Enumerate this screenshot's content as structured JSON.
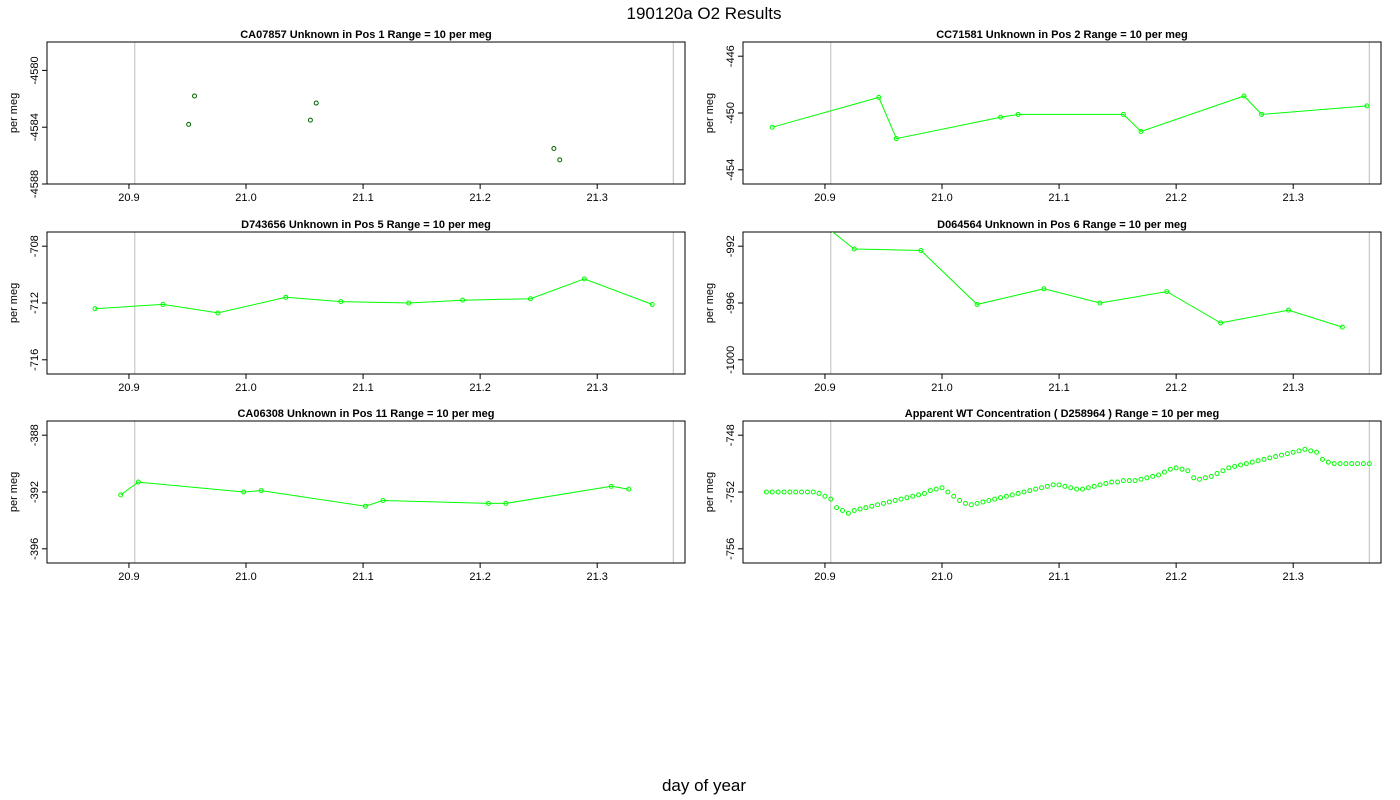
{
  "figure": {
    "title": "190120a  O2 Results",
    "xlabel": "day of year"
  },
  "chart_data": [
    {
      "type": "scatter",
      "title": "CA07857    Unknown in Pos 1         Range = 10 per meg",
      "ylabel": "per meg",
      "xlim": [
        20.83,
        21.375
      ],
      "ylim": [
        -4588.0,
        -4578.0
      ],
      "xticks": [
        20.9,
        21.0,
        21.1,
        21.2,
        21.3
      ],
      "yticks": [
        -4588,
        -4584,
        -4580
      ],
      "vlines": [
        20.905,
        21.365
      ],
      "series": [
        {
          "color": "#006400",
          "mode": "points",
          "x": [
            20.951,
            20.956,
            21.055,
            21.06,
            21.263,
            21.268
          ],
          "y": [
            -4583.8,
            -4581.8,
            -4583.5,
            -4582.3,
            -4585.5,
            -4586.3
          ]
        }
      ]
    },
    {
      "type": "line",
      "title": "CC71581    Unknown in Pos 2         Range = 10 per meg",
      "ylabel": "per meg",
      "xlim": [
        20.83,
        21.375
      ],
      "ylim": [
        -455.0,
        -445.0
      ],
      "xticks": [
        20.9,
        21.0,
        21.1,
        21.2,
        21.3
      ],
      "yticks": [
        -454,
        -450,
        -446
      ],
      "vlines": [
        20.905,
        21.365
      ],
      "series": [
        {
          "color": "#00ff00",
          "mode": "lines+points",
          "x": [
            20.855,
            20.946,
            20.961,
            21.05,
            21.065,
            21.155,
            21.17,
            21.258,
            21.273,
            21.363
          ],
          "y": [
            -451.0,
            -448.9,
            -451.8,
            -450.3,
            -450.1,
            -450.1,
            -451.3,
            -448.8,
            -450.1,
            -449.5
          ]
        }
      ]
    },
    {
      "type": "line",
      "title": "D743656    Unknown in Pos 5         Range = 10 per meg",
      "ylabel": "per meg",
      "xlim": [
        20.83,
        21.375
      ],
      "ylim": [
        -717.0,
        -707.0
      ],
      "xticks": [
        20.9,
        21.0,
        21.1,
        21.2,
        21.3
      ],
      "yticks": [
        -716,
        -712,
        -708
      ],
      "vlines": [
        20.905,
        21.365
      ],
      "series": [
        {
          "color": "#00ff00",
          "mode": "lines+points",
          "x": [
            20.871,
            20.929,
            20.976,
            21.034,
            21.081,
            21.139,
            21.185,
            21.243,
            21.289,
            21.347
          ],
          "y": [
            -712.4,
            -712.1,
            -712.7,
            -711.6,
            -711.9,
            -712.0,
            -711.8,
            -711.7,
            -710.3,
            -712.1
          ]
        }
      ]
    },
    {
      "type": "line",
      "title": "D064564    Unknown in Pos 6         Range = 10 per meg",
      "ylabel": "per meg",
      "xlim": [
        20.83,
        21.375
      ],
      "ylim": [
        -1001.0,
        -991.0
      ],
      "xticks": [
        20.9,
        21.0,
        21.1,
        21.2,
        21.3
      ],
      "yticks": [
        -1000,
        -996,
        -992
      ],
      "vlines": [
        20.905,
        21.365
      ],
      "series": [
        {
          "color": "#00ff00",
          "mode": "lines+points",
          "x": [
            20.87,
            20.925,
            20.982,
            21.03,
            21.087,
            21.135,
            21.192,
            21.238,
            21.296,
            21.342
          ],
          "y": [
            -988.6,
            -992.2,
            -992.3,
            -996.1,
            -995.0,
            -996.0,
            -995.2,
            -997.4,
            -996.5,
            -997.7
          ]
        }
      ]
    },
    {
      "type": "line",
      "title": "CA06308    Unknown in Pos 11         Range = 10 per meg",
      "ylabel": "per meg",
      "xlim": [
        20.83,
        21.375
      ],
      "ylim": [
        -397.0,
        -387.0
      ],
      "xticks": [
        20.9,
        21.0,
        21.1,
        21.2,
        21.3
      ],
      "yticks": [
        -396,
        -392,
        -388
      ],
      "vlines": [
        20.905,
        21.365
      ],
      "series": [
        {
          "color": "#00ff00",
          "mode": "lines+points",
          "x": [
            20.893,
            20.908,
            20.998,
            21.013,
            21.102,
            21.117,
            21.207,
            21.222,
            21.312,
            21.327
          ],
          "y": [
            -392.2,
            -391.3,
            -392.0,
            -391.9,
            -393.0,
            -392.6,
            -392.8,
            -392.8,
            -391.6,
            -391.8
          ]
        }
      ]
    },
    {
      "type": "scatter",
      "title": "Apparent WT Concentration ( D258964 )         Range = 10 per meg",
      "ylabel": "per meg",
      "xlim": [
        20.83,
        21.375
      ],
      "ylim": [
        -757.0,
        -747.0
      ],
      "xticks": [
        20.9,
        21.0,
        21.1,
        21.2,
        21.3
      ],
      "yticks": [
        -756,
        -752,
        -748
      ],
      "vlines": [
        20.905,
        21.365
      ],
      "series": [
        {
          "color": "#00ff00",
          "mode": "points",
          "x": [
            20.85,
            20.855,
            20.86,
            20.865,
            20.87,
            20.875,
            20.88,
            20.885,
            20.89,
            20.895,
            20.9,
            20.905,
            20.91,
            20.915,
            20.92,
            20.925,
            20.93,
            20.935,
            20.94,
            20.945,
            20.95,
            20.955,
            20.96,
            20.965,
            20.97,
            20.975,
            20.98,
            20.985,
            20.99,
            20.995,
            21.0,
            21.005,
            21.01,
            21.015,
            21.02,
            21.025,
            21.03,
            21.035,
            21.04,
            21.045,
            21.05,
            21.055,
            21.06,
            21.065,
            21.07,
            21.075,
            21.08,
            21.085,
            21.09,
            21.095,
            21.1,
            21.105,
            21.11,
            21.115,
            21.12,
            21.125,
            21.13,
            21.135,
            21.14,
            21.145,
            21.15,
            21.155,
            21.16,
            21.165,
            21.17,
            21.175,
            21.18,
            21.185,
            21.19,
            21.195,
            21.2,
            21.205,
            21.21,
            21.215,
            21.22,
            21.225,
            21.23,
            21.235,
            21.24,
            21.245,
            21.25,
            21.255,
            21.26,
            21.265,
            21.27,
            21.275,
            21.28,
            21.285,
            21.29,
            21.295,
            21.3,
            21.305,
            21.31,
            21.315,
            21.32,
            21.325,
            21.33,
            21.335,
            21.34,
            21.345,
            21.35,
            21.355,
            21.36,
            21.365
          ],
          "y": [
            -752.0,
            -752.0,
            -752.0,
            -752.0,
            -752.0,
            -752.0,
            -752.0,
            -752.0,
            -752.0,
            -752.1,
            -752.3,
            -752.5,
            -753.1,
            -753.3,
            -753.5,
            -753.3,
            -753.2,
            -753.1,
            -753.0,
            -752.9,
            -752.8,
            -752.7,
            -752.6,
            -752.5,
            -752.4,
            -752.3,
            -752.2,
            -752.1,
            -751.9,
            -751.8,
            -751.7,
            -752.0,
            -752.3,
            -752.6,
            -752.8,
            -752.9,
            -752.8,
            -752.7,
            -752.6,
            -752.5,
            -752.4,
            -752.3,
            -752.2,
            -752.1,
            -752.0,
            -751.9,
            -751.8,
            -751.7,
            -751.6,
            -751.5,
            -751.5,
            -751.6,
            -751.7,
            -751.8,
            -751.8,
            -751.7,
            -751.6,
            -751.5,
            -751.4,
            -751.3,
            -751.3,
            -751.2,
            -751.2,
            -751.2,
            -751.1,
            -751.0,
            -750.9,
            -750.8,
            -750.6,
            -750.4,
            -750.3,
            -750.4,
            -750.5,
            -751.0,
            -751.1,
            -751.0,
            -750.9,
            -750.7,
            -750.5,
            -750.3,
            -750.2,
            -750.1,
            -750.0,
            -749.9,
            -749.8,
            -749.7,
            -749.6,
            -749.5,
            -749.4,
            -749.3,
            -749.2,
            -749.1,
            -749.0,
            -749.1,
            -749.2,
            -749.7,
            -749.9,
            -750.0,
            -750.0,
            -750.0,
            -750.0,
            -750.0,
            -750.0,
            -750.0
          ]
        }
      ]
    }
  ]
}
